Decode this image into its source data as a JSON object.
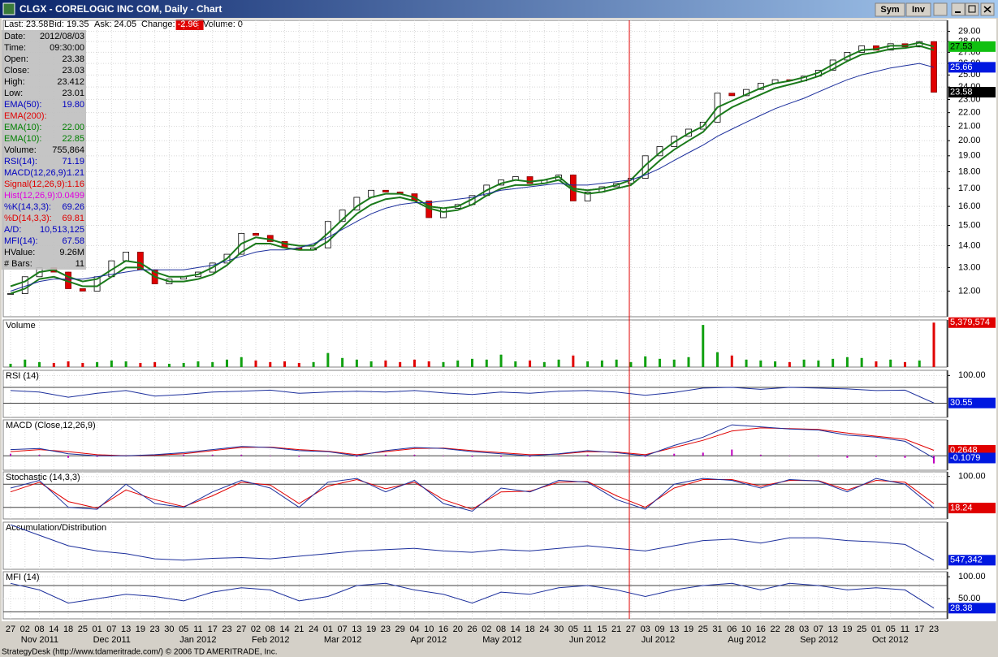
{
  "window": {
    "title": "CLGX - CORELOGIC INC COM, Daily - Chart",
    "buttons": [
      "Sym",
      "Inv"
    ]
  },
  "quote_bar": [
    {
      "label": "Last:",
      "value": "23.58"
    },
    {
      "label": "Bid:",
      "value": "19.35"
    },
    {
      "label": "Ask:",
      "value": "24.05"
    },
    {
      "label": "Change:",
      "value": "-2.96",
      "highlight": "#e00000"
    },
    {
      "label": "Volume:",
      "value": "0"
    }
  ],
  "info_panel": [
    {
      "label": "Date:",
      "value": "2012/08/03",
      "color": "#000000"
    },
    {
      "label": "Time:",
      "value": "09:30:00",
      "color": "#000000"
    },
    {
      "label": "Open:",
      "value": "23.38",
      "color": "#000000"
    },
    {
      "label": "Close:",
      "value": "23.03",
      "color": "#000000"
    },
    {
      "label": "High:",
      "value": "23.412",
      "color": "#000000"
    },
    {
      "label": "Low:",
      "value": "23.01",
      "color": "#000000"
    },
    {
      "label": "EMA(50):",
      "value": "19.80",
      "color": "#0000c0"
    },
    {
      "label": "EMA(200):",
      "color": "#e00000"
    },
    {
      "label": "EMA(10):",
      "value": "22.00",
      "color": "#008000"
    },
    {
      "label": "EMA(10):",
      "value": "22.85",
      "color": "#008000"
    },
    {
      "label": "Volume:",
      "value": "755,864",
      "color": "#000000"
    },
    {
      "label": "RSI(14):",
      "value": "71.19",
      "color": "#0000c0"
    },
    {
      "label": "MACD(12,26,9):",
      "value": "1.21",
      "color": "#0000c0"
    },
    {
      "label": "Signal(12,26,9):",
      "value": "1.16",
      "color": "#e00000"
    },
    {
      "label": "Hist(12,26,9):",
      "value": "0.0499",
      "color": "#e000e0"
    },
    {
      "label": "%K(14,3,3):",
      "value": "69.26",
      "color": "#0000c0"
    },
    {
      "label": "%D(14,3,3):",
      "value": "69.81",
      "color": "#e00000"
    },
    {
      "label": "A/D:",
      "value": "10,513,125",
      "color": "#0000c0"
    },
    {
      "label": "MFI(14):",
      "value": "67.58",
      "color": "#0000c0"
    },
    {
      "label": "HValue:",
      "value": "9.26M",
      "color": "#000000"
    },
    {
      "label": "# Bars:",
      "value": "11",
      "color": "#000000"
    }
  ],
  "status_bar": "StrategyDesk (http://www.tdameritrade.com/) © 2006 TD AMERITRADE, Inc.",
  "chart_data": [
    {
      "type": "candlestick",
      "log_scale": true,
      "grid": true,
      "categories": [
        "27",
        "02",
        "08",
        "14",
        "18",
        "25",
        "01",
        "07",
        "13",
        "19",
        "23",
        "30",
        "05",
        "11",
        "17",
        "23",
        "27",
        "02",
        "08",
        "14",
        "21",
        "24",
        "01",
        "07",
        "13",
        "19",
        "23",
        "29",
        "04",
        "10",
        "16",
        "20",
        "26",
        "02",
        "08",
        "14",
        "18",
        "24",
        "30",
        "05",
        "11",
        "15",
        "21",
        "27",
        "03",
        "09",
        "13",
        "19",
        "25",
        "31",
        "06",
        "10",
        "16",
        "22",
        "28",
        "03",
        "07",
        "13",
        "19",
        "25",
        "01",
        "05",
        "11",
        "17",
        "23"
      ],
      "month_labels": [
        "Nov 2011",
        "Dec 2011",
        "Jan 2012",
        "Feb 2012",
        "Mar 2012",
        "Apr 2012",
        "May 2012",
        "Jun 2012",
        "Jul 2012",
        "Aug 2012",
        "Sep 2012",
        "Oct 2012"
      ],
      "ylim": [
        11,
        30.1
      ],
      "yticks": [
        {
          "value": 12,
          "label": "12.00"
        },
        {
          "value": 13,
          "label": "13.00"
        },
        {
          "value": 14,
          "label": "14.00"
        },
        {
          "value": 15,
          "label": "15.00"
        },
        {
          "value": 16,
          "label": "16.00"
        },
        {
          "value": 17,
          "label": "17.00"
        },
        {
          "value": 18,
          "label": "18.00"
        },
        {
          "value": 19,
          "label": "19.00"
        },
        {
          "value": 20,
          "label": "20.00"
        },
        {
          "value": 21,
          "label": "21.00"
        },
        {
          "value": 22,
          "label": "22.00"
        },
        {
          "value": 23,
          "label": "23.00"
        },
        {
          "value": 24,
          "label": "24.00"
        },
        {
          "value": 25,
          "label": "25.00"
        },
        {
          "value": 26,
          "label": "26.00"
        },
        {
          "value": 27,
          "label": "27.00"
        },
        {
          "value": 28,
          "label": "28.00"
        },
        {
          "value": 29,
          "label": "29.00"
        }
      ],
      "series": [
        {
          "color": "#e00000",
          "values": [
            11.9,
            12.6,
            13.0,
            12.8,
            12.1,
            12.0,
            12.6,
            13.3,
            13.7,
            12.9,
            12.3,
            12.5,
            12.6,
            12.8,
            13.2,
            13.6,
            14.6,
            14.5,
            14.2,
            13.9,
            13.8,
            13.9,
            15.2,
            15.8,
            16.5,
            16.9,
            16.8,
            16.7,
            16.3,
            15.4,
            15.9,
            16.1,
            16.6,
            17.2,
            17.5,
            17.7,
            17.3,
            17.5,
            17.8,
            16.3,
            16.8,
            17.1,
            17.3,
            17.6,
            19.0,
            19.6,
            20.3,
            20.8,
            21.3,
            23.5,
            23.3,
            23.8,
            24.3,
            24.6,
            24.5,
            24.9,
            25.4,
            26.3,
            27.0,
            27.6,
            27.2,
            27.8,
            27.5,
            28.0,
            23.58
          ]
        },
        {
          "color": "#1a7a1a",
          "values": [
            12.2,
            12.4,
            12.8,
            12.9,
            12.6,
            12.4,
            12.5,
            12.9,
            13.3,
            13.2,
            12.8,
            12.6,
            12.6,
            12.7,
            13.0,
            13.4,
            14.1,
            14.4,
            14.3,
            14.1,
            14.0,
            14.0,
            14.6,
            15.3,
            16.0,
            16.5,
            16.7,
            16.7,
            16.5,
            16.0,
            15.9,
            16.0,
            16.4,
            16.9,
            17.3,
            17.5,
            17.4,
            17.5,
            17.7,
            17.0,
            16.9,
            17.0,
            17.2,
            17.5,
            18.4,
            19.2,
            19.9,
            20.5,
            21.0,
            22.4,
            22.9,
            23.4,
            23.9,
            24.3,
            24.5,
            24.8,
            25.2,
            25.9,
            26.6,
            27.2,
            27.3,
            27.6,
            27.6,
            27.9,
            27.53
          ]
        },
        {
          "color": "#1a7a1a",
          "values": [
            11.9,
            12.1,
            12.5,
            12.6,
            12.4,
            12.2,
            12.2,
            12.6,
            13.0,
            13.0,
            12.6,
            12.4,
            12.4,
            12.5,
            12.7,
            13.1,
            13.7,
            14.1,
            14.1,
            13.9,
            13.8,
            13.8,
            14.2,
            14.9,
            15.6,
            16.1,
            16.4,
            16.5,
            16.3,
            15.9,
            15.7,
            15.8,
            16.1,
            16.6,
            17.0,
            17.2,
            17.2,
            17.3,
            17.5,
            16.9,
            16.7,
            16.8,
            17.0,
            17.2,
            17.9,
            18.7,
            19.4,
            20.0,
            20.6,
            21.7,
            22.4,
            22.9,
            23.4,
            23.9,
            24.2,
            24.5,
            24.9,
            25.5,
            26.2,
            26.8,
            27.0,
            27.3,
            27.4,
            27.6,
            27.2
          ]
        },
        {
          "color": "#1c2f9c",
          "values": [
            12.0,
            12.2,
            12.4,
            12.5,
            12.5,
            12.5,
            12.6,
            12.7,
            12.8,
            12.9,
            12.9,
            12.9,
            12.9,
            13.0,
            13.1,
            13.3,
            13.5,
            13.7,
            13.8,
            13.8,
            13.9,
            14.1,
            14.4,
            14.8,
            15.2,
            15.6,
            15.9,
            16.1,
            16.2,
            16.2,
            16.3,
            16.4,
            16.5,
            16.7,
            16.9,
            17.0,
            17.1,
            17.2,
            17.3,
            17.2,
            17.2,
            17.3,
            17.4,
            17.5,
            17.8,
            18.2,
            18.7,
            19.2,
            19.7,
            20.3,
            20.8,
            21.3,
            21.8,
            22.3,
            22.7,
            23.1,
            23.6,
            24.1,
            24.6,
            25.0,
            25.3,
            25.6,
            25.8,
            26.0,
            25.66
          ]
        }
      ],
      "markers": [
        {
          "value": 27.53,
          "color": "#10c010",
          "text_color": "#000000"
        },
        {
          "value": 25.66,
          "color": "#0018e0",
          "text_color": "#ffffff"
        },
        {
          "value": 23.58,
          "color": "#000000",
          "text_color": "#ffffff"
        }
      ]
    },
    {
      "type": "bar",
      "title": "Volume",
      "ylim": [
        0,
        5700000
      ],
      "series": [
        {
          "color": "#10a010",
          "down_color": "#e00000",
          "values": [
            400000,
            900000,
            600000,
            500000,
            700000,
            500000,
            600000,
            800000,
            700000,
            500000,
            600000,
            400000,
            500000,
            700000,
            600000,
            900000,
            1200000,
            800000,
            600000,
            700000,
            500000,
            600000,
            1700000,
            1100000,
            900000,
            700000,
            800000,
            600000,
            900000,
            700000,
            600000,
            800000,
            1000000,
            900000,
            1500000,
            700000,
            800000,
            600000,
            900000,
            1400000,
            700000,
            800000,
            900000,
            600000,
            1300000,
            1000000,
            900000,
            1200000,
            5100000,
            1800000,
            1400000,
            900000,
            800000,
            700000,
            600000,
            900000,
            800000,
            1000000,
            1200000,
            1100000,
            700000,
            900000,
            600000,
            800000,
            5379574
          ]
        }
      ],
      "markers": [
        {
          "value": 5379574,
          "label": "5,379,574",
          "color": "#e00000",
          "text_color": "#ffffff"
        }
      ]
    },
    {
      "type": "line",
      "title": "RSI (14)",
      "ylim": [
        -6,
        113
      ],
      "yticks": [
        {
          "value": 100,
          "label": "100.00"
        }
      ],
      "levels": [
        70,
        30
      ],
      "series": [
        {
          "color": "#1c2f9c",
          "values": [
            62,
            58,
            45,
            55,
            62,
            48,
            52,
            58,
            60,
            63,
            55,
            58,
            60,
            58,
            62,
            56,
            52,
            58,
            55,
            60,
            62,
            58,
            50,
            57,
            68,
            70,
            65,
            70,
            68,
            66,
            62,
            63,
            30.55
          ]
        }
      ],
      "markers": [
        {
          "value": 30.55,
          "color": "#0018e0",
          "text_color": "#ffffff"
        }
      ]
    },
    {
      "type": "line",
      "title": "MACD (Close,12,26,9)",
      "ylim": [
        -0.7,
        1.74
      ],
      "levels": [
        0
      ],
      "series": [
        {
          "color": "#c000c0",
          "kind": "histogram",
          "values": [
            0.1,
            0.05,
            -0.1,
            -0.05,
            0,
            0.02,
            0.05,
            0.05,
            0.05,
            -0.02,
            -0.05,
            -0.02,
            -0.05,
            0.05,
            0.05,
            -0.02,
            -0.05,
            -0.05,
            -0.05,
            0.02,
            0.05,
            -0.03,
            -0.05,
            0.1,
            0.15,
            0.3,
            0.05,
            -0.02,
            -0.03,
            -0.1,
            -0.05,
            -0.1,
            -0.37
          ]
        },
        {
          "color": "#e00000",
          "values": [
            0.2,
            0.3,
            0.2,
            0.05,
            0.0,
            0.03,
            0.1,
            0.25,
            0.4,
            0.42,
            0.3,
            0.22,
            0.05,
            0.2,
            0.35,
            0.37,
            0.25,
            0.15,
            0.05,
            0.08,
            0.2,
            0.18,
            0.05,
            0.4,
            0.75,
            1.2,
            1.35,
            1.32,
            1.28,
            1.1,
            0.95,
            0.8,
            0.2648
          ]
        },
        {
          "color": "#1c2f9c",
          "values": [
            0.3,
            0.35,
            0.1,
            0.0,
            0.0,
            0.05,
            0.15,
            0.3,
            0.45,
            0.4,
            0.25,
            0.2,
            0.0,
            0.25,
            0.4,
            0.35,
            0.2,
            0.1,
            0.0,
            0.1,
            0.25,
            0.15,
            0.0,
            0.5,
            0.9,
            1.5,
            1.4,
            1.3,
            1.25,
            1.0,
            0.9,
            0.7,
            -0.1079
          ]
        }
      ],
      "markers": [
        {
          "value": 0.2648,
          "color": "#e00000",
          "text_color": "#ffffff"
        },
        {
          "value": -0.1079,
          "color": "#0018e0",
          "text_color": "#ffffff"
        }
      ]
    },
    {
      "type": "line",
      "title": "Stochastic (14,3,3)",
      "ylim": [
        -10,
        112
      ],
      "yticks": [
        {
          "value": 100,
          "label": "100.00"
        }
      ],
      "levels": [
        80,
        20
      ],
      "series": [
        {
          "color": "#e00000",
          "values": [
            60,
            85,
            35,
            18,
            65,
            40,
            22,
            50,
            85,
            78,
            30,
            75,
            92,
            68,
            85,
            40,
            15,
            60,
            62,
            85,
            87,
            50,
            20,
            70,
            92,
            92,
            75,
            90,
            89,
            65,
            90,
            85,
            30
          ]
        },
        {
          "color": "#1c2f9c",
          "values": [
            70,
            90,
            20,
            15,
            80,
            30,
            20,
            60,
            90,
            70,
            20,
            85,
            95,
            60,
            90,
            30,
            10,
            70,
            60,
            90,
            85,
            40,
            15,
            80,
            95,
            90,
            70,
            92,
            88,
            60,
            95,
            80,
            18.24
          ]
        }
      ],
      "markers": [
        {
          "value": 18.24,
          "color": "#e00000",
          "text_color": "#ffffff"
        }
      ]
    },
    {
      "type": "line",
      "title": "Accumulation/Distribution",
      "ylim": [
        200000,
        2000000
      ],
      "series": [
        {
          "color": "#1c2f9c",
          "values": [
            1900000,
            1500000,
            1100000,
            900000,
            800000,
            600000,
            550000,
            620000,
            650000,
            600000,
            700000,
            800000,
            900000,
            950000,
            1000000,
            900000,
            850000,
            950000,
            900000,
            1000000,
            1100000,
            1000000,
            900000,
            1100000,
            1300000,
            1350000,
            1200000,
            1400000,
            1400000,
            1300000,
            1250000,
            1150000,
            547342
          ]
        }
      ],
      "markers": [
        {
          "value": 547342,
          "label": "547,342",
          "color": "#0018e0",
          "text_color": "#ffffff"
        }
      ]
    },
    {
      "type": "line",
      "title": "MFI (14)",
      "ylim": [
        4,
        111.5
      ],
      "yticks": [
        {
          "value": 100,
          "label": "100.00"
        },
        {
          "value": 50,
          "label": "50.00"
        }
      ],
      "levels": [
        80,
        20
      ],
      "series": [
        {
          "color": "#1c2f9c",
          "values": [
            85,
            70,
            40,
            50,
            60,
            55,
            45,
            65,
            75,
            70,
            45,
            55,
            80,
            85,
            70,
            60,
            40,
            65,
            60,
            75,
            80,
            70,
            55,
            70,
            80,
            85,
            70,
            85,
            80,
            70,
            75,
            70,
            28.38
          ]
        }
      ],
      "markers": [
        {
          "value": 28.38,
          "color": "#0018e0",
          "text_color": "#ffffff"
        }
      ]
    }
  ]
}
